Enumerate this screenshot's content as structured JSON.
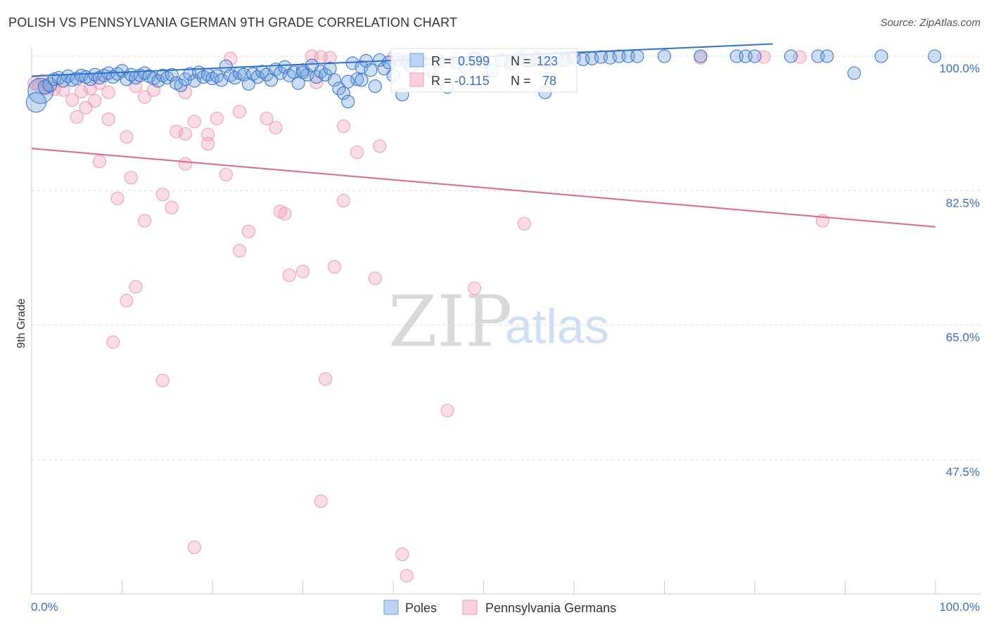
{
  "title": "POLISH VS PENNSYLVANIA GERMAN 9TH GRADE CORRELATION CHART",
  "source": "Source: ZipAtlas.com",
  "watermark": {
    "zip": "ZIP",
    "atlas": "atlas"
  },
  "colors": {
    "poles": "#6fa0dc",
    "poles_line": "#2f6fcc",
    "penn": "#f09ab4",
    "penn_line": "#e06690",
    "grid": "#dddddd",
    "axis_text": "#3b6fc8"
  },
  "stats": {
    "poles": {
      "r_label": "R = ",
      "r_value": "0.599",
      "n_label": "N = ",
      "n_value": "123"
    },
    "penn": {
      "r_label": "R = ",
      "r_value": "-0.115",
      "n_label": "N = ",
      "n_value": "78"
    }
  },
  "legend": {
    "poles": "Poles",
    "penn": "Pennsylvania Germans"
  },
  "chart_data": {
    "type": "scatter",
    "title": "POLISH VS PENNSYLVANIA GERMAN 9TH GRADE CORRELATION CHART",
    "xlabel": "",
    "ylabel": "9th Grade",
    "xlim": [
      0,
      100
    ],
    "ylim": [
      30,
      100
    ],
    "x_tick_labels": [
      "0.0%",
      "100.0%"
    ],
    "y_ticks": [
      {
        "value": 100.0,
        "label": "100.0%"
      },
      {
        "value": 82.5,
        "label": "82.5%"
      },
      {
        "value": 65.0,
        "label": "65.0%"
      },
      {
        "value": 47.5,
        "label": "47.5%"
      }
    ],
    "series": [
      {
        "name": "Poles",
        "r": 0.599,
        "n": 123,
        "trend": {
          "x": [
            0,
            82
          ],
          "y": [
            97.4,
            101.6
          ]
        },
        "points": [
          [
            1,
            95.5,
            18
          ],
          [
            0.5,
            94,
            14
          ],
          [
            1.5,
            96,
            10
          ],
          [
            2,
            96.3,
            10
          ],
          [
            2.5,
            97,
            9
          ],
          [
            3,
            97.2,
            9
          ],
          [
            3.5,
            96.8,
            9
          ],
          [
            4,
            97.4,
            9
          ],
          [
            4.5,
            96.9,
            9
          ],
          [
            5,
            97.1,
            9
          ],
          [
            5.5,
            97.5,
            9
          ],
          [
            6,
            97.3,
            9
          ],
          [
            6.5,
            97.0,
            9
          ],
          [
            7,
            97.6,
            9
          ],
          [
            7.5,
            97.2,
            9
          ],
          [
            8,
            97.5,
            9
          ],
          [
            8.5,
            97.8,
            9
          ],
          [
            9,
            97.3,
            9
          ],
          [
            9.5,
            97.7,
            9
          ],
          [
            10,
            98.1,
            9
          ],
          [
            10.5,
            97.0,
            9
          ],
          [
            11,
            97.6,
            9
          ],
          [
            11.5,
            97.2,
            9
          ],
          [
            12,
            97.5,
            9
          ],
          [
            12.5,
            97.8,
            9
          ],
          [
            13,
            97.4,
            9
          ],
          [
            13.5,
            97.1,
            9
          ],
          [
            14,
            96.8,
            9
          ],
          [
            14.5,
            97.5,
            9
          ],
          [
            15,
            97.2,
            9
          ],
          [
            15.5,
            97.6,
            9
          ],
          [
            16,
            96.5,
            9
          ],
          [
            16.5,
            96.2,
            9
          ],
          [
            17,
            97.0,
            9
          ],
          [
            17.5,
            97.7,
            9
          ],
          [
            18,
            96.8,
            9
          ],
          [
            18.5,
            97.9,
            9
          ],
          [
            19,
            97.3,
            9
          ],
          [
            19.5,
            97.6,
            9
          ],
          [
            20,
            97.1,
            9
          ],
          [
            20.5,
            97.4,
            9
          ],
          [
            21,
            96.9,
            9
          ],
          [
            21.5,
            98.7,
            9
          ],
          [
            22,
            97.5,
            9
          ],
          [
            22.5,
            97.2,
            9
          ],
          [
            23,
            97.8,
            9
          ],
          [
            23.5,
            97.6,
            9
          ],
          [
            24,
            96.4,
            9
          ],
          [
            24.5,
            97.7,
            9
          ],
          [
            25,
            97.3,
            9
          ],
          [
            25.5,
            98.0,
            9
          ],
          [
            26,
            97.6,
            9
          ],
          [
            26.5,
            96.9,
            9
          ],
          [
            27,
            98.3,
            9
          ],
          [
            27.5,
            97.8,
            9
          ],
          [
            28,
            98.6,
            9
          ],
          [
            28.5,
            97.5,
            9
          ],
          [
            29,
            97.9,
            9
          ],
          [
            29.5,
            96.5,
            9
          ],
          [
            30,
            98.2,
            9
          ],
          [
            30.5,
            97.6,
            9
          ],
          [
            31,
            98.8,
            9
          ],
          [
            31.5,
            97.3,
            9
          ],
          [
            32,
            98.0,
            9
          ],
          [
            32.5,
            97.6,
            9
          ],
          [
            33,
            98.4,
            9
          ],
          [
            33.5,
            96.9,
            9
          ],
          [
            34,
            95.8,
            9
          ],
          [
            34.5,
            95.2,
            9
          ],
          [
            35,
            94.1,
            9
          ],
          [
            35.5,
            99.1,
            9
          ],
          [
            36,
            97.0,
            9
          ],
          [
            36.5,
            98.6,
            9
          ],
          [
            37,
            99.4,
            9
          ],
          [
            37.5,
            98.2,
            9
          ],
          [
            38,
            96.1,
            9
          ],
          [
            38.5,
            99.5,
            9
          ],
          [
            39,
            98.4,
            9
          ],
          [
            39.5,
            99.2,
            9
          ],
          [
            40,
            97.5,
            9
          ],
          [
            40.5,
            99.6,
            9
          ],
          [
            41,
            95.0,
            9
          ],
          [
            41.5,
            99.3,
            9
          ],
          [
            42,
            98.7,
            9
          ],
          [
            43,
            99.5,
            9
          ],
          [
            44,
            98.2,
            9
          ],
          [
            45,
            99.4,
            9
          ],
          [
            46,
            96.0,
            9
          ],
          [
            47,
            99.1,
            9
          ],
          [
            48,
            98.6,
            9
          ],
          [
            49,
            99.7,
            9
          ],
          [
            50,
            99.3,
            9
          ],
          [
            51,
            98.1,
            9
          ],
          [
            52,
            99.5,
            9
          ],
          [
            53,
            99.0,
            9
          ],
          [
            54,
            99.7,
            9
          ],
          [
            55,
            99.4,
            9
          ],
          [
            56,
            99.6,
            9
          ],
          [
            57,
            99.2,
            9
          ],
          [
            58,
            99.7,
            9
          ],
          [
            59,
            99.5,
            9
          ],
          [
            60,
            99.8,
            9
          ],
          [
            61,
            99.6,
            9
          ],
          [
            62,
            99.7,
            9
          ],
          [
            63,
            99.9,
            9
          ],
          [
            64,
            99.8,
            9
          ],
          [
            65,
            100,
            9
          ],
          [
            66,
            100,
            9
          ],
          [
            67,
            100,
            9
          ],
          [
            70,
            100,
            9
          ],
          [
            74,
            100,
            9
          ],
          [
            78,
            100,
            9
          ],
          [
            79,
            100,
            9
          ],
          [
            80,
            100,
            9
          ],
          [
            84,
            100,
            9
          ],
          [
            87,
            100,
            9
          ],
          [
            88,
            100,
            9
          ],
          [
            91,
            97.8,
            9
          ],
          [
            94,
            100,
            9
          ],
          [
            99.9,
            100,
            9
          ],
          [
            56.8,
            95.3,
            9
          ],
          [
            36.5,
            96.9,
            9
          ],
          [
            30,
            97.9,
            9
          ],
          [
            35,
            96.7,
            9
          ]
        ]
      },
      {
        "name": "Pennsylvania Germans",
        "r": -0.115,
        "n": 78,
        "trend": {
          "x": [
            0,
            100
          ],
          "y": [
            88.0,
            77.8
          ]
        },
        "points": [
          [
            0.3,
            96.5,
            9
          ],
          [
            0.8,
            96.2,
            9
          ],
          [
            1.2,
            96.8,
            9
          ],
          [
            1.5,
            95.8,
            9
          ],
          [
            2,
            96.0,
            9
          ],
          [
            2.5,
            95.7,
            9
          ],
          [
            3.5,
            95.6,
            9
          ],
          [
            4.5,
            94.3,
            9
          ],
          [
            5,
            92.1,
            9
          ],
          [
            5.5,
            95.4,
            9
          ],
          [
            6,
            93.3,
            9
          ],
          [
            6.5,
            95.8,
            9
          ],
          [
            7,
            94.2,
            9
          ],
          [
            7.5,
            96.5,
            9
          ],
          [
            8.5,
            95.3,
            9
          ],
          [
            8.5,
            91.8,
            9
          ],
          [
            10.5,
            89.5,
            9
          ],
          [
            11.5,
            96.1,
            9
          ],
          [
            12.5,
            94.7,
            9
          ],
          [
            13.5,
            95.6,
            9
          ],
          [
            16,
            90.2,
            9
          ],
          [
            17,
            89.9,
            9
          ],
          [
            17,
            95.3,
            9
          ],
          [
            18,
            91.5,
            9
          ],
          [
            19.5,
            89.8,
            9
          ],
          [
            20.5,
            91.9,
            9
          ],
          [
            22,
            99.7,
            9
          ],
          [
            23,
            92.8,
            9
          ],
          [
            26,
            91.9,
            9
          ],
          [
            27,
            90.7,
            9
          ],
          [
            31,
            100,
            9
          ],
          [
            31.5,
            96.6,
            9
          ],
          [
            32,
            99.9,
            9
          ],
          [
            33,
            99.8,
            9
          ],
          [
            34.5,
            90.9,
            9
          ],
          [
            36,
            87.5,
            9
          ],
          [
            38.5,
            88.3,
            9
          ],
          [
            40,
            99.8,
            9
          ],
          [
            42,
            99.9,
            9
          ],
          [
            47,
            99.9,
            9
          ],
          [
            49,
            99.8,
            9
          ],
          [
            50,
            99.9,
            9
          ],
          [
            56,
            99.8,
            9
          ],
          [
            59.5,
            99.9,
            9
          ],
          [
            74,
            99.8,
            9
          ],
          [
            81,
            99.9,
            9
          ],
          [
            85,
            99.9,
            9
          ],
          [
            7.5,
            86.3,
            9
          ],
          [
            9.5,
            81.5,
            9
          ],
          [
            11,
            84.2,
            9
          ],
          [
            12.5,
            78.6,
            9
          ],
          [
            14.5,
            82.0,
            9
          ],
          [
            15.5,
            80.3,
            9
          ],
          [
            17,
            86.0,
            9
          ],
          [
            19.5,
            88.6,
            9
          ],
          [
            21.5,
            84.6,
            9
          ],
          [
            23,
            74.7,
            9
          ],
          [
            24,
            77.2,
            9
          ],
          [
            27.5,
            79.8,
            9
          ],
          [
            28,
            79.5,
            9
          ],
          [
            28.5,
            71.5,
            9
          ],
          [
            30,
            72.0,
            9
          ],
          [
            33.5,
            72.6,
            9
          ],
          [
            34.5,
            81.2,
            9
          ],
          [
            38,
            71.1,
            9
          ],
          [
            49,
            69.8,
            9
          ],
          [
            54.5,
            78.2,
            9
          ],
          [
            87.5,
            78.6,
            9
          ],
          [
            11.5,
            70.0,
            9
          ],
          [
            10.5,
            68.2,
            9
          ],
          [
            9,
            62.8,
            9
          ],
          [
            14.5,
            57.8,
            9
          ],
          [
            32.5,
            58.0,
            9
          ],
          [
            46,
            53.9,
            9
          ],
          [
            32,
            42.1,
            9
          ],
          [
            18,
            36.1,
            9
          ],
          [
            41,
            35.2,
            9
          ],
          [
            41.5,
            32.4,
            9
          ]
        ]
      }
    ]
  }
}
